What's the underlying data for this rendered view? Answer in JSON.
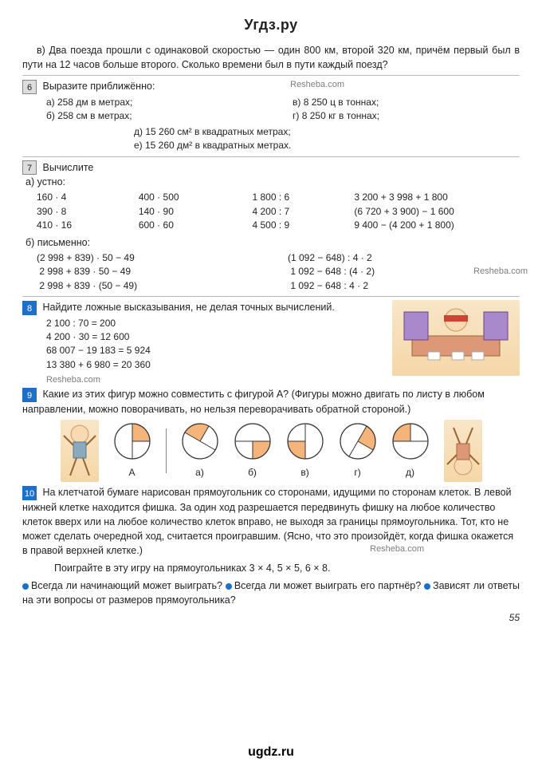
{
  "header": "Угдз.ру",
  "footer": "ugdz.ru",
  "watermark": "Resheba.com",
  "page_number": "55",
  "problem_v": "в) Два поезда прошли с одинаковой скоростью — один 800 км, второй 320 км, причём первый был в пути на 12 часов больше второго. Сколько времени был в пути каждый поезд?",
  "p6": {
    "num": "6",
    "title": "Выразите приближённо:",
    "a": "а) 258 дм в метрах;",
    "b": "б) 258 см в метрах;",
    "c": "в) 8 250 ц в тоннах;",
    "d": "г) 8 250 кг в тоннах;",
    "e": "д) 15 260 см² в квадратных метрах;",
    "f": "е) 15 260 дм² в квадратных метрах."
  },
  "p7": {
    "num": "7",
    "title": "Вычислите",
    "a_label": "а) устно:",
    "col1": "160 · 4\n390 · 8\n410 · 16",
    "col2": "400 · 500\n140 · 90\n600 · 60",
    "col3": "1 800 : 6\n4 200 : 7\n4 500 : 9",
    "col4": "3 200 + 3 998 + 1 800\n(6 720 + 3 900) − 1 600\n9 400 − (4 200 + 1 800)",
    "b_label": "б) письменно:",
    "left": "(2 998 + 839) · 50 − 49\n 2 998 + 839 · 50 − 49\n 2 998 + 839 · (50 − 49)",
    "right": "(1 092 − 648) : 4 · 2\n 1 092 − 648 : (4 · 2)\n 1 092 − 648 : 4 · 2"
  },
  "p8": {
    "num": "8",
    "title": "Найдите ложные высказывания, не делая точных вычислений.",
    "lines": "2 100 : 70 = 200\n4 200 · 30 = 12 600\n68 007 − 19 183 = 5 924\n13 380 + 6 980 = 20 360"
  },
  "p9": {
    "num": "9",
    "text": "Какие из этих фигур можно совместить с фигурой А? (Фигуры можно двигать по листу в любом направлении, можно поворачивать, но нельзя переворачивать обратной стороной.)",
    "labels": [
      "А",
      "а)",
      "б)",
      "в)",
      "г)",
      "д)"
    ],
    "circles": [
      {
        "angles": [
          0,
          90
        ],
        "fill": "#f5b57a"
      },
      {
        "angles": [
          300,
          30
        ],
        "fill": "#f5b57a"
      },
      {
        "angles": [
          90,
          180
        ],
        "fill": "#f5b57a"
      },
      {
        "angles": [
          180,
          270
        ],
        "fill": "#f5b57a"
      },
      {
        "angles": [
          30,
          120
        ],
        "fill": "#f5b57a"
      },
      {
        "angles": [
          270,
          360
        ],
        "fill": "#f5b57a"
      }
    ]
  },
  "p10": {
    "num": "10",
    "text": "На клетчатой бумаге нарисован прямоугольник со сторонами, идущими по сторонам клеток. В левой нижней клетке находится фишка. За один ход разрешается передвинуть фишку на любое количество клеток вверх или на любое количество клеток вправо, не выходя за границы прямоугольника. Тот, кто не может сделать очередной ход, считается проигравшим. (Ясно, что это произойдёт, когда фишка окажется в правой верхней клетке.)",
    "play": "Поиграйте в эту игру на прямоугольниках 3 × 4, 5 × 5, 6 × 8.",
    "q1": "Всегда ли начинающий может выиграть?",
    "q2": "Всегда ли может выиграть его партнёр?",
    "q3": "Зависят ли ответы на эти вопросы от размеров прямоугольника?"
  },
  "colors": {
    "accent": "#1f6fc9",
    "peach": "#f5b57a"
  }
}
